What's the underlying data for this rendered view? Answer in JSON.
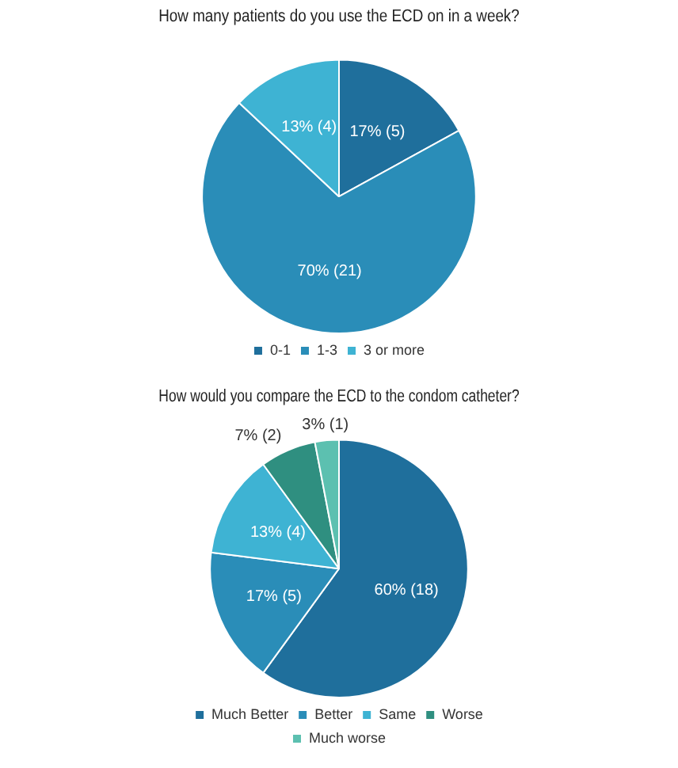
{
  "chart_data": [
    {
      "type": "pie",
      "title": "How many patients do you use the ECD on in a week?",
      "categories": [
        "0-1",
        "1-3",
        "3 or more"
      ],
      "values": [
        17,
        70,
        13
      ],
      "colors": [
        "#1f6f9c",
        "#2a8db8",
        "#3eb3d3"
      ],
      "value_labels": [
        "17% (5)",
        "70% (21)",
        "13% (4)"
      ],
      "legend": "bottom"
    },
    {
      "type": "pie",
      "title": "How would you compare the ECD to the condom catheter?",
      "categories": [
        "Much Better",
        "Better",
        "Same",
        "Worse",
        "Much worse"
      ],
      "values": [
        60,
        17,
        13,
        7,
        3
      ],
      "colors": [
        "#1f6f9c",
        "#2a8db8",
        "#3eb3d3",
        "#2f8f80",
        "#5cc0b0"
      ],
      "value_labels": [
        "60% (18)",
        "17% (5)",
        "13% (4)",
        "7% (2)",
        "3% (1)"
      ],
      "legend": "bottom"
    }
  ]
}
